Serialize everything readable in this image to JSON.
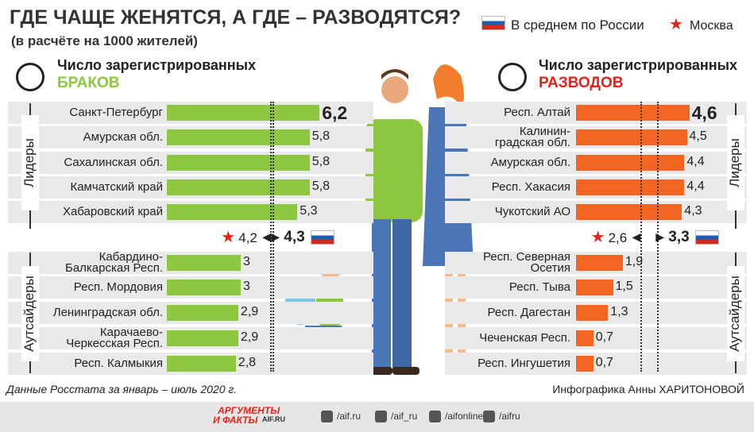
{
  "header": {
    "title": "ГДЕ ЧАЩЕ ЖЕНЯТСЯ, А ГДЕ – РАЗВОДЯТСЯ?",
    "subtitle": "(в расчёте на 1000 жителей)"
  },
  "legend": {
    "russia": "В среднем по России",
    "moscow": "Москва"
  },
  "chart_data": [
    {
      "type": "bar",
      "orientation": "horizontal",
      "title": "Число зарегистрированных",
      "subtitle": "БРАКОВ",
      "color": "#8dc63f",
      "subtitle_color": "#8dc63f",
      "groups": [
        "Лидеры",
        "Аутсайдеры"
      ],
      "categories": [
        "Санкт-Петербург",
        "Амурская обл.",
        "Сахалинская обл.",
        "Камчатский край",
        "Хабаровский край",
        "Кабардино-\nБалкарская Респ.",
        "Респ. Мордовия",
        "Ленинградская обл.",
        "Карачаево-\nЧеркесская Респ.",
        "Респ. Калмыкия"
      ],
      "values": [
        6.2,
        5.8,
        5.8,
        5.8,
        5.3,
        3,
        3,
        2.9,
        2.9,
        2.8
      ],
      "value_labels": [
        "6,2",
        "5,8",
        "5,8",
        "5,8",
        "5,3",
        "3",
        "3",
        "2,9",
        "2,9",
        "2,8"
      ],
      "moscow": {
        "value": 4.2,
        "label": "4,2"
      },
      "russia": {
        "value": 4.3,
        "label": "4,3"
      }
    },
    {
      "type": "bar",
      "orientation": "horizontal",
      "title": "Число зарегистрированных",
      "subtitle": "РАЗВОДОВ",
      "color": "#f26522",
      "subtitle_color": "#e2231a",
      "groups": [
        "Лидеры",
        "Аутсайдеры"
      ],
      "categories": [
        "Респ. Алтай",
        "Калинин-\nградская обл.",
        "Амурская обл.",
        "Респ. Хакасия",
        "Чукотский АО",
        "Респ. Северная\nОсетия",
        "Респ. Тыва",
        "Респ. Дагестан",
        "Чеченская Респ.",
        "Респ. Ингушетия"
      ],
      "values": [
        4.6,
        4.5,
        4.4,
        4.4,
        4.3,
        1.9,
        1.5,
        1.3,
        0.7,
        0.7
      ],
      "value_labels": [
        "4,6",
        "4,5",
        "4,4",
        "4,4",
        "4,3",
        "1,9",
        "1,5",
        "1,3",
        "0,7",
        "0,7"
      ],
      "moscow": {
        "value": 2.6,
        "label": "2,6"
      },
      "russia": {
        "value": 3.3,
        "label": "3,3"
      }
    }
  ],
  "footer": {
    "source": "Данные Росстата за январь – июль 2020 г.",
    "credit": "Инфографика Анны ХАРИТОНОВОЙ",
    "logo": [
      "АРГУМЕНТЫ",
      "И ФАКТЫ",
      "AIF.RU"
    ],
    "social": [
      "/aif.ru",
      "/aif_ru",
      "/aifonline",
      "/aifru"
    ]
  }
}
